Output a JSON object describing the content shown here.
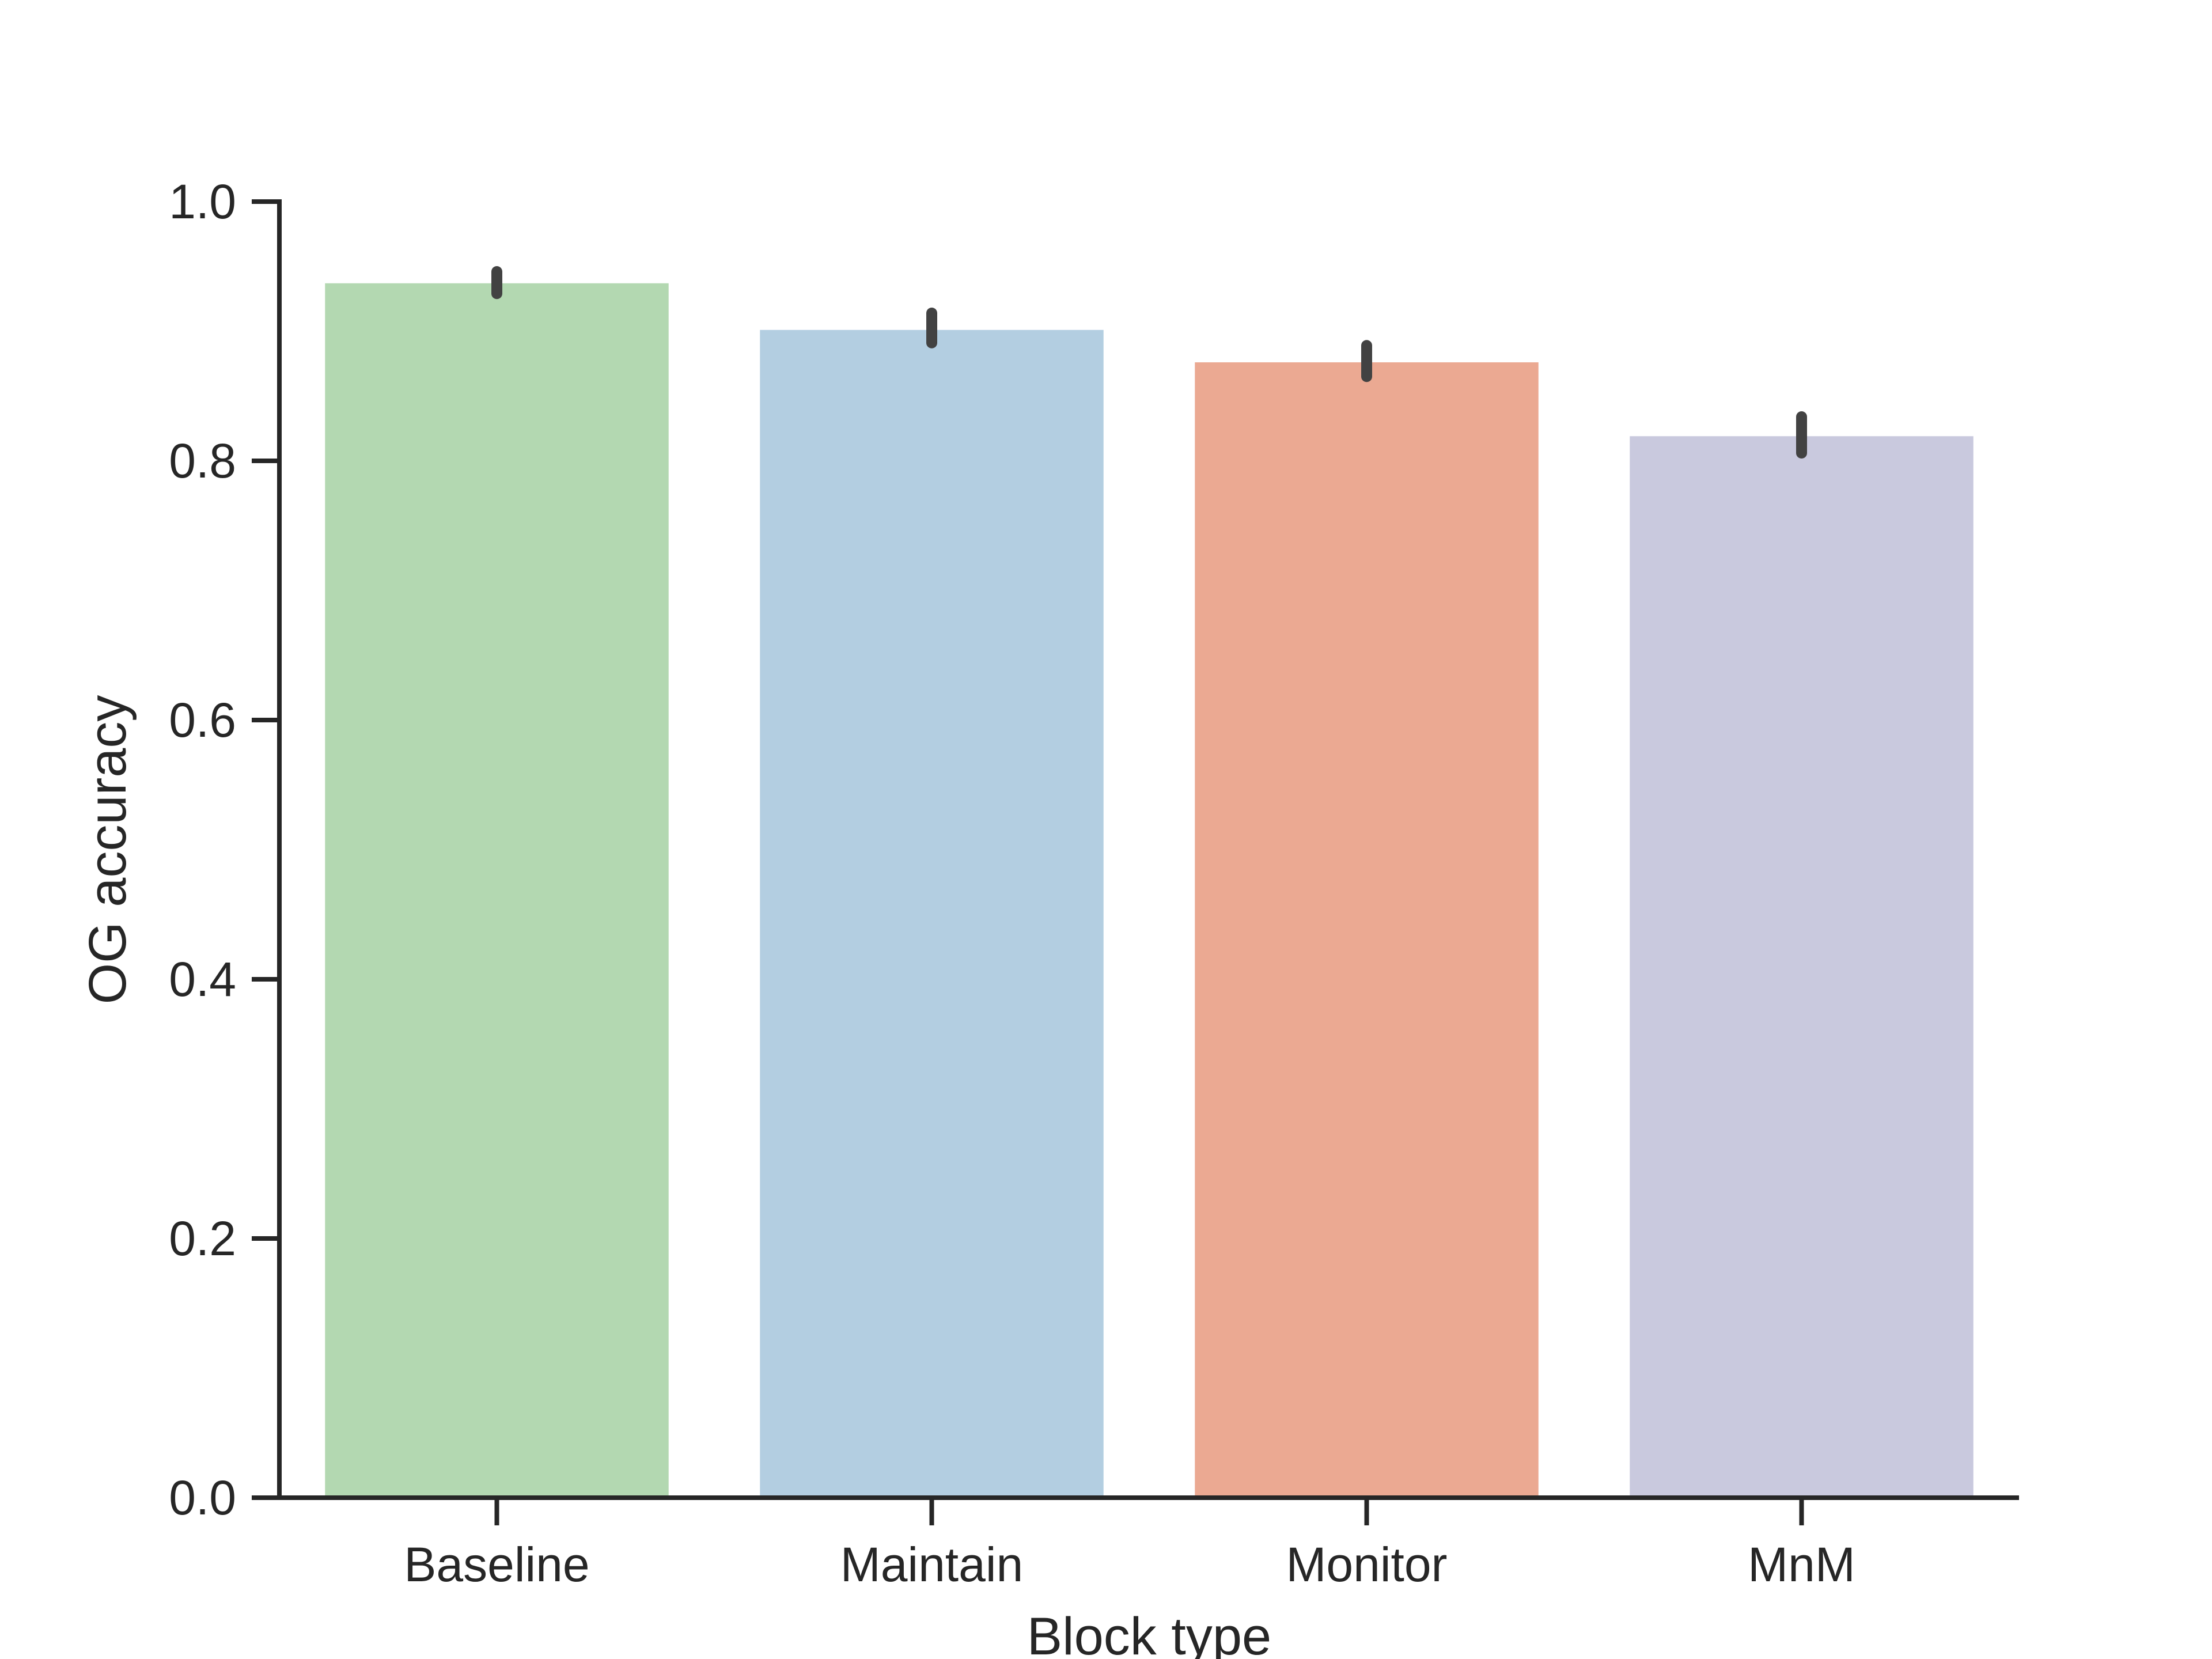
{
  "chart_data": {
    "type": "bar",
    "title": "",
    "xlabel": "Block type",
    "ylabel": "OG accuracy",
    "categories": [
      "Baseline",
      "Maintain",
      "Monitor",
      "MnM"
    ],
    "values": [
      0.937,
      0.901,
      0.876,
      0.819
    ],
    "error_bars": [
      [
        0.929,
        0.946
      ],
      [
        0.891,
        0.914
      ],
      [
        0.865,
        0.889
      ],
      [
        0.806,
        0.834
      ]
    ],
    "colors": [
      "#b3d8b1",
      "#b3cee1",
      "#eba992",
      "#c9c9de"
    ],
    "ylim": [
      0,
      1.0
    ],
    "yticks": [
      0.0,
      0.2,
      0.4,
      0.6,
      0.8,
      1.0
    ],
    "ytick_labels": [
      "0.0",
      "0.2",
      "0.4",
      "0.6",
      "0.8",
      "1.0"
    ],
    "grid": false,
    "legend": "none"
  }
}
